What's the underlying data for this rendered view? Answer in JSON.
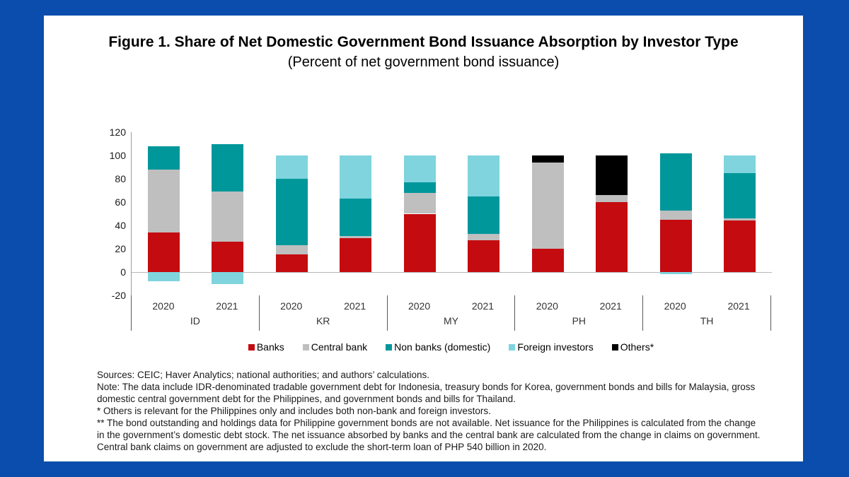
{
  "figure": {
    "title": "Figure 1. Share of Net Domestic Government Bond Issuance Absorption by Investor Type",
    "subtitle": "(Percent of net government bond issuance)"
  },
  "colors": {
    "frame_blue": "#0a4dac",
    "banks_red": "#c40b10",
    "central_bank_gray": "#bfbfbf",
    "non_banks_teal": "#00979b",
    "foreign_cyan": "#7fd4de",
    "others_black": "#000000"
  },
  "chart_data": {
    "type": "bar",
    "stacked": true,
    "grid": false,
    "legend_position": "bottom",
    "ylim": [
      -20,
      120
    ],
    "yticks": [
      120,
      100,
      80,
      60,
      40,
      20,
      0,
      -20
    ],
    "series": [
      {
        "name": "Banks",
        "color": "#c40b10"
      },
      {
        "name": "Central bank",
        "color": "#bfbfbf"
      },
      {
        "name": "Non banks (domestic)",
        "color": "#00979b"
      },
      {
        "name": "Foreign investors",
        "color": "#7fd4de"
      },
      {
        "name": "Others*",
        "color": "#000000"
      }
    ],
    "groups": [
      {
        "label": "ID",
        "bars": [
          {
            "label": "2020",
            "values": [
              34,
              54,
              20,
              -8,
              0
            ]
          },
          {
            "label": "2021",
            "values": [
              26,
              43,
              41,
              -10,
              0
            ]
          }
        ]
      },
      {
        "label": "KR",
        "bars": [
          {
            "label": "2020",
            "values": [
              15,
              8,
              57,
              20,
              0
            ]
          },
          {
            "label": "2021",
            "values": [
              29,
              2,
              32,
              37,
              0
            ]
          }
        ]
      },
      {
        "label": "MY",
        "bars": [
          {
            "label": "2020",
            "values": [
              50,
              18,
              9,
              23,
              0
            ]
          },
          {
            "label": "2021",
            "values": [
              27,
              6,
              32,
              35,
              0
            ]
          }
        ]
      },
      {
        "label": "PH",
        "bars": [
          {
            "label": "2020",
            "values": [
              20,
              74,
              0,
              0,
              6
            ]
          },
          {
            "label": "2021",
            "values": [
              60,
              6,
              0,
              0,
              34
            ]
          }
        ]
      },
      {
        "label": "TH",
        "bars": [
          {
            "label": "2020",
            "values": [
              45,
              8,
              49,
              -2,
              0
            ]
          },
          {
            "label": "2021",
            "values": [
              44,
              2,
              39,
              15,
              0
            ]
          }
        ]
      }
    ]
  },
  "footnotes": [
    "Sources: CEIC; Haver Analytics; national authorities; and authors’ calculations.",
    "Note: The data include IDR-denominated tradable government debt for Indonesia, treasury bonds for Korea, government bonds and bills for Malaysia, gross domestic central government debt for the Philippines, and government bonds and bills for Thailand.",
    "* Others is relevant for the Philippines only and includes both non-bank and foreign investors.",
    "** The bond outstanding and holdings data for Philippine government bonds are not available. Net issuance for the Philippines is calculated from the change in the government’s domestic debt stock. The net issuance absorbed by banks and the central bank are calculated from the change in claims on government. Central bank claims on government are adjusted to exclude the short-term loan of PHP 540 billion in 2020."
  ]
}
